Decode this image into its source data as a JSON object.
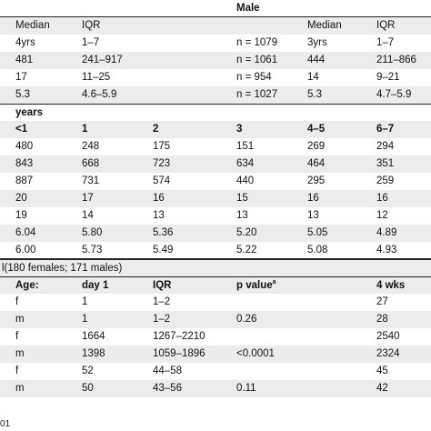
{
  "table": {
    "rows": [
      {
        "style": "header-top",
        "cells": [
          "",
          "",
          "",
          "Male",
          "",
          ""
        ],
        "bold": [
          false,
          false,
          false,
          true,
          false,
          false
        ]
      },
      {
        "style": "shaded",
        "cells": [
          "Median",
          "IQR",
          "",
          "",
          "Median",
          "IQR"
        ]
      },
      {
        "style": "plain",
        "cells": [
          "4yrs",
          "1–7",
          "",
          "n = 1079",
          "3yrs",
          "1–7"
        ]
      },
      {
        "style": "shaded",
        "cells": [
          "481",
          "241–917",
          "",
          "n = 1061",
          "444",
          "211–866"
        ]
      },
      {
        "style": "plain",
        "cells": [
          "17",
          "11–25",
          "",
          "n = 954",
          "14",
          "9–21"
        ]
      },
      {
        "style": "shaded",
        "cells": [
          "5.3",
          "4.6–5.9",
          "",
          "n = 1027",
          "5.3",
          "4.7–5.9"
        ]
      },
      {
        "style": "section-bold",
        "cells": [
          "years",
          "",
          "",
          "",
          "",
          ""
        ]
      },
      {
        "style": "shaded-bold",
        "cells": [
          "<1",
          "1",
          "2",
          "3",
          "4–5",
          "6–7"
        ]
      },
      {
        "style": "plain",
        "cells": [
          "480",
          "248",
          "175",
          "151",
          "269",
          "294"
        ]
      },
      {
        "style": "shaded",
        "cells": [
          "843",
          "668",
          "723",
          "634",
          "464",
          "351"
        ]
      },
      {
        "style": "plain",
        "cells": [
          "887",
          "731",
          "574",
          "440",
          "295",
          "259"
        ]
      },
      {
        "style": "shaded",
        "cells": [
          "20",
          "17",
          "16",
          "15",
          "16",
          "16"
        ]
      },
      {
        "style": "plain",
        "cells": [
          "19",
          "14",
          "13",
          "13",
          "13",
          "12"
        ]
      },
      {
        "style": "shaded",
        "cells": [
          "6.04",
          "5.80",
          "5.36",
          "5.20",
          "5.05",
          "4.89"
        ]
      },
      {
        "style": "plain-bottom",
        "cells": [
          "6.00",
          "5.73",
          "5.49",
          "5.22",
          "5.08",
          "4.93"
        ]
      }
    ],
    "subgroup_heading": "l(180 females; 171 males)",
    "lower_header": [
      "Age:",
      "day 1",
      "IQR",
      "p value",
      "",
      "4 wks"
    ],
    "lower_header_sup": "a",
    "lower_rows": [
      {
        "style": "plain",
        "cells": [
          "f",
          "1",
          "1–2",
          "",
          "",
          "27"
        ]
      },
      {
        "style": "shaded",
        "cells": [
          "m",
          "1",
          "1–2",
          "0.26",
          "",
          "28"
        ]
      },
      {
        "style": "plain",
        "cells": [
          "f",
          "1664",
          "1267–2210",
          "",
          "",
          "2540"
        ]
      },
      {
        "style": "shaded",
        "cells": [
          "m",
          "1398",
          "1059–1896",
          "<0.0001",
          "",
          "2324"
        ]
      },
      {
        "style": "plain",
        "cells": [
          "f",
          "52",
          "44–58",
          "",
          "",
          "45"
        ]
      },
      {
        "style": "shaded",
        "cells": [
          "m",
          "50",
          "43–56",
          "0.11",
          "",
          "42"
        ]
      }
    ]
  },
  "footer": {
    "text": "01"
  }
}
